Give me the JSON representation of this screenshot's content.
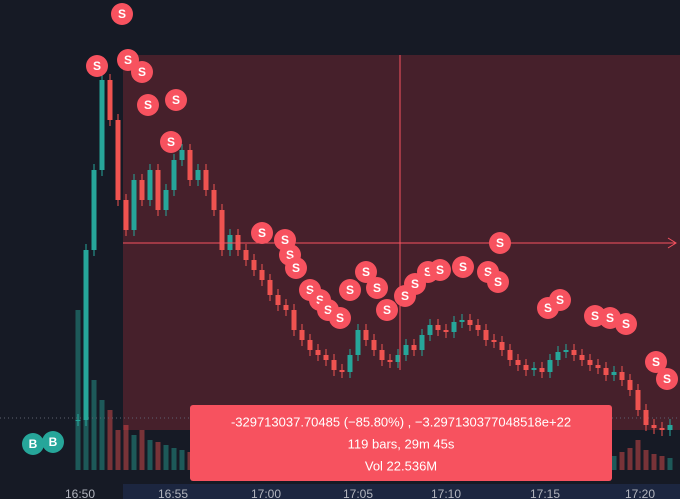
{
  "chart_data": {
    "type": "candlestick",
    "x_labels": [
      "16:50",
      "16:55",
      "17:00",
      "17:05",
      "17:10",
      "17:15",
      "17:20"
    ],
    "close": [
      80,
      250,
      330,
      420,
      380,
      300,
      270,
      320,
      300,
      330,
      290,
      310,
      340,
      350,
      320,
      330,
      310,
      290,
      250,
      265,
      250,
      240,
      230,
      220,
      205,
      195,
      190,
      170,
      160,
      150,
      145,
      140,
      130,
      128,
      145,
      170,
      160,
      150,
      140,
      138,
      145,
      155,
      150,
      165,
      175,
      170,
      168,
      178,
      180,
      175,
      170,
      160,
      158,
      150,
      140,
      135,
      130,
      132,
      128,
      140,
      148,
      150,
      145,
      140,
      135,
      132,
      125,
      128,
      120,
      110,
      90,
      75,
      72,
      70,
      75
    ],
    "volume": [
      160,
      130,
      90,
      70,
      60,
      40,
      45,
      35,
      40,
      30,
      28,
      25,
      22,
      20,
      18,
      20,
      16,
      18,
      22,
      15,
      14,
      16,
      12,
      14,
      18,
      12,
      10,
      12,
      14,
      10,
      9,
      12,
      14,
      10,
      12,
      16,
      10,
      8,
      9,
      10,
      12,
      10,
      9,
      11,
      12,
      10,
      8,
      9,
      10,
      9,
      8,
      10,
      9,
      12,
      10,
      8,
      9,
      8,
      10,
      12,
      10,
      9,
      8,
      10,
      9,
      11,
      12,
      14,
      18,
      22,
      30,
      20,
      16,
      14,
      12
    ],
    "up_color": "#26a69a",
    "down_color": "#ef5350",
    "sell_label": "S",
    "buy_label": "B",
    "measure": {
      "change": "-329713037.70485 (−85.80%) , −3.297130377048518e+22",
      "bars": "119 bars, 29m 45s",
      "volume": "Vol 22.536M"
    }
  }
}
